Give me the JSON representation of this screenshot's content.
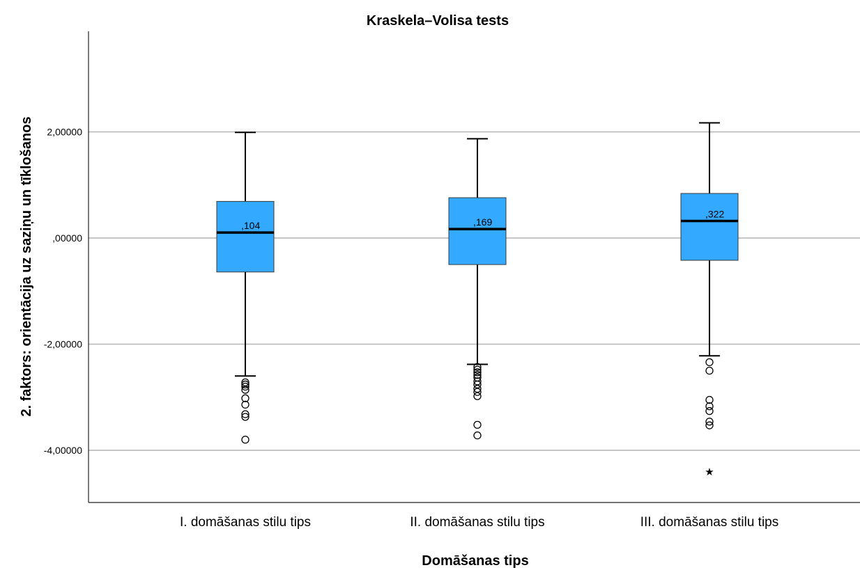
{
  "chart_data": {
    "type": "boxplot",
    "title": "Kraskela–Volisa tests",
    "xlabel": "Domāšanas tips",
    "ylabel": "2. faktors: orientācija uz saziņu un tīklošanos",
    "ylim": [
      -4.9,
      3.9
    ],
    "yticks": [
      2.0,
      0.0,
      -2.0,
      -4.0
    ],
    "ytick_labels": [
      "2,00000",
      ",00000",
      "-2,00000",
      "-4,00000"
    ],
    "grid": true,
    "box_color": "#33aaff",
    "categories": [
      "I. domāšanas stilu tips",
      "II. domāšanas stilu tips",
      "III. domāšanas stilu tips"
    ],
    "boxes": [
      {
        "category": "I. domāšanas stilu tips",
        "whisker_high": 1.99,
        "q3": 0.69,
        "median": 0.104,
        "q1": -0.64,
        "whisker_low": -2.6,
        "median_label": ",104",
        "outliers": [
          -2.72,
          -2.76,
          -2.8,
          -2.86,
          -3.02,
          -3.14,
          -3.32,
          -3.37,
          -3.8
        ],
        "extremes": []
      },
      {
        "category": "II. domāšanas stilu tips",
        "whisker_high": 1.87,
        "q3": 0.76,
        "median": 0.169,
        "q1": -0.5,
        "whisker_low": -2.38,
        "median_label": ",169",
        "outliers": [
          -2.43,
          -2.48,
          -2.53,
          -2.58,
          -2.63,
          -2.7,
          -2.76,
          -2.84,
          -2.9,
          -2.98,
          -3.52,
          -3.72
        ],
        "extremes": []
      },
      {
        "category": "III. domāšanas stilu tips",
        "whisker_high": 2.17,
        "q3": 0.84,
        "median": 0.322,
        "q1": -0.42,
        "whisker_low": -2.22,
        "median_label": ",322",
        "outliers": [
          -2.34,
          -2.5,
          -3.05,
          -3.17,
          -3.26,
          -3.46,
          -3.53
        ],
        "extremes": [
          -4.38
        ]
      }
    ]
  }
}
